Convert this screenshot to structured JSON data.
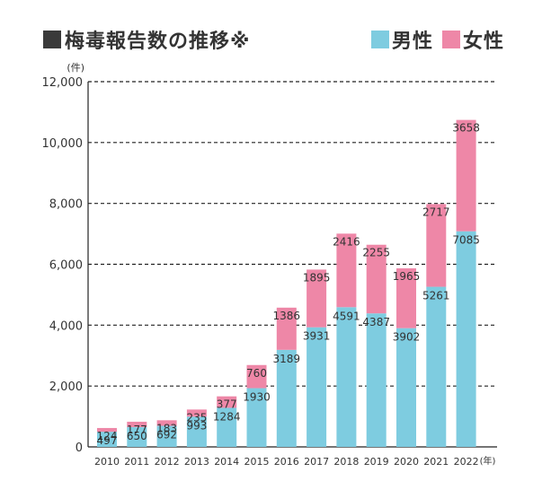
{
  "title": "梅毒報告数の推移※",
  "colors": {
    "male": "#7ecce0",
    "female": "#ee87a7",
    "text": "#333333",
    "grid": "#222222"
  },
  "chart_data": {
    "type": "bar",
    "stacked": true,
    "y_unit_label": "(件)",
    "x_unit_label": "(年)",
    "ylim": [
      0,
      12000
    ],
    "yticks": [
      0,
      2000,
      4000,
      6000,
      8000,
      10000,
      12000
    ],
    "ytick_labels": [
      "0",
      "2,000",
      "4,000",
      "6,000",
      "8,000",
      "10,000",
      "12,000"
    ],
    "categories": [
      "2010",
      "2011",
      "2012",
      "2013",
      "2014",
      "2015",
      "2016",
      "2017",
      "2018",
      "2019",
      "2020",
      "2021",
      "2022"
    ],
    "series": [
      {
        "name": "男性",
        "values": [
          497,
          650,
          692,
          993,
          1284,
          1930,
          3189,
          3931,
          4591,
          4387,
          3902,
          5261,
          7085
        ]
      },
      {
        "name": "女性",
        "values": [
          124,
          177,
          183,
          235,
          377,
          760,
          1386,
          1895,
          2416,
          2255,
          1965,
          2717,
          3658
        ]
      }
    ],
    "legend_position": "top-right",
    "grid": true
  }
}
